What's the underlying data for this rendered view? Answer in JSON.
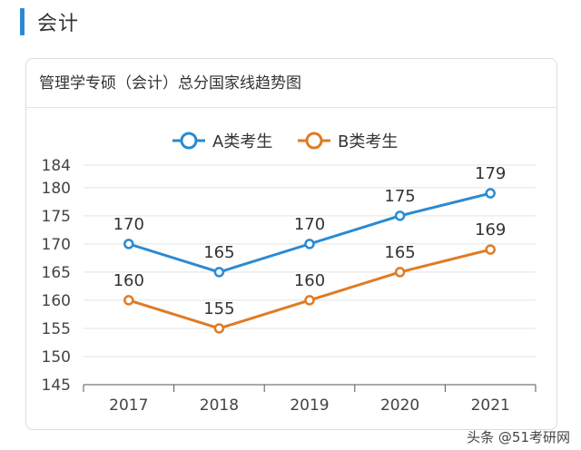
{
  "section": {
    "title": "会计"
  },
  "card": {
    "title": "管理学专硕（会计）总分国家线趋势图"
  },
  "watermark": "头条 @51考研网",
  "colors": {
    "accent": "#2a8ad3",
    "seriesA": "#2a8ad3",
    "seriesB": "#e07b24"
  },
  "chart_data": {
    "type": "line",
    "title": "管理学专硕（会计）总分国家线趋势图",
    "x": [
      "2017",
      "2018",
      "2019",
      "2020",
      "2021"
    ],
    "series": [
      {
        "name": "A类考生",
        "color": "#2a8ad3",
        "values": [
          170,
          165,
          170,
          175,
          179
        ]
      },
      {
        "name": "B类考生",
        "color": "#e07b24",
        "values": [
          160,
          155,
          160,
          165,
          169
        ]
      }
    ],
    "yticks": [
      145,
      150,
      155,
      160,
      165,
      170,
      175,
      180,
      184
    ],
    "ylim": [
      145,
      184
    ],
    "grid": true,
    "legend": "top-center",
    "data_labels": true
  }
}
